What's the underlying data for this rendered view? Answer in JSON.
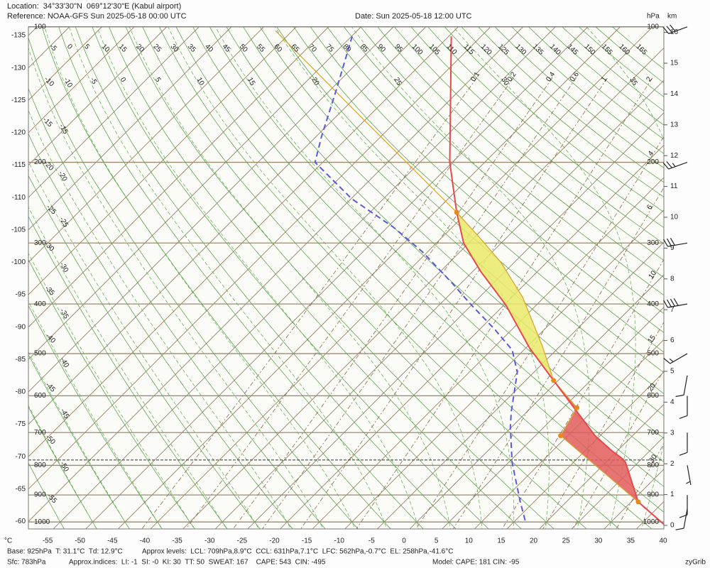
{
  "header": {
    "location": "Location:  34°33'30\"N  069°12'30\"E (Kabul airport)",
    "reference": "Reference: NOAA-GFS Sun 2025-05-18 00:00 UTC",
    "date": "Date: Sun 2025-05-18 12:00 UTC"
  },
  "chart_data": {
    "type": "skewt",
    "pressure_unit": "hPa",
    "height_unit": "km",
    "temperature_unit": "°C",
    "xticks": [
      -55,
      -50,
      -45,
      -40,
      -35,
      -30,
      -25,
      -20,
      -15,
      -10,
      -5,
      0,
      5,
      10,
      15,
      20,
      25,
      30,
      35,
      40
    ],
    "left_ticks": [
      -135,
      -130,
      -125,
      -120,
      -115,
      -110,
      -105,
      -100,
      -95,
      -90,
      -85,
      -80,
      -75,
      -70,
      -65,
      -60
    ],
    "pressure_ticks": [
      100,
      200,
      300,
      400,
      500,
      600,
      700,
      800,
      900,
      1000
    ],
    "km_ticks": [
      0,
      1,
      2,
      3,
      4,
      5,
      6,
      7,
      8,
      9,
      10,
      11,
      12,
      13,
      14,
      15,
      16
    ],
    "dry_adiabats": [
      -55,
      -50,
      -45,
      -40,
      -35,
      -30,
      -25,
      -20,
      -15,
      -10,
      -5,
      0,
      5,
      10,
      15,
      20,
      25,
      30,
      35,
      40,
      45,
      50,
      55,
      60,
      65,
      70,
      75,
      80,
      85,
      90,
      95,
      100,
      105,
      110,
      115,
      120,
      125,
      130,
      135,
      140,
      145,
      150,
      155,
      160,
      165
    ],
    "moist_adiabats": [
      -50,
      -45,
      -40,
      -35,
      -30,
      -25,
      -20,
      -15,
      -10,
      -5,
      0,
      5,
      10,
      15,
      20,
      25,
      30,
      35
    ],
    "mixing_ratios": [
      0.1,
      0.2,
      0.4,
      0.6,
      1,
      2,
      4,
      6,
      10,
      15,
      20,
      30
    ],
    "surface_pressure": 783,
    "temperature": {
      "color": "#e8474c",
      "p": [
        1010,
        925,
        790,
        779,
        753,
        709,
        562,
        487,
        402,
        343,
        300,
        258,
        200,
        105
      ],
      "t": [
        38.6,
        31.1,
        23.0,
        22.0,
        19.0,
        14.2,
        -0.7,
        -9.5,
        -19.7,
        -28.9,
        -35.8,
        -41.6,
        -50.4,
        -69.6
      ]
    },
    "dewpoint": {
      "color": "#5a5ade",
      "p": [
        994,
        925,
        790,
        684,
        642,
        542,
        492,
        448,
        399,
        363,
        313,
        278,
        241,
        200,
        175,
        138,
        105
      ],
      "t": [
        16.5,
        12.9,
        5.5,
        -0.2,
        -2.4,
        -7.6,
        -11.8,
        -17.8,
        -25.5,
        -31.4,
        -40.8,
        -49.0,
        -59.9,
        -71.2,
        -74.2,
        -79.1,
        -84.9
      ]
    },
    "parcel": {
      "color": "#d9a22a",
      "p": [
        925,
        709,
        631,
        562,
        484,
        388,
        329,
        292,
        258,
        162,
        102
      ],
      "t": [
        31.1,
        8.9,
        7.1,
        -0.7,
        -7.7,
        -18.3,
        -27.1,
        -34.2,
        -41.6,
        -69.8,
        -97.6
      ]
    },
    "cape_color": "#e9e96a",
    "cin_color": "#e05c5c",
    "markers": {
      "color": "#e68a1e",
      "p": [
        925,
        709,
        631,
        562,
        258
      ],
      "t": [
        31.1,
        8.9,
        7.1,
        -0.7,
        -41.6
      ]
    },
    "winds": {
      "p": [
        100,
        200,
        300,
        400,
        500,
        550,
        600,
        700,
        800,
        900,
        950
      ],
      "speed": [
        30,
        25,
        30,
        40,
        15,
        10,
        10,
        10,
        5,
        10,
        10
      ],
      "direction": [
        250,
        250,
        260,
        260,
        240,
        190,
        180,
        180,
        170,
        180,
        190
      ]
    }
  },
  "footer": {
    "base": "Base: 925hPa  T: 31.1°C  Td: 12.9°C",
    "levels": "Approx levels:  LCL: 709hPa,8.9°C  CCL: 631hPa,7.1°C  LFC: 562hPa,-0.7°C  EL: 258hPa,-41.6°C",
    "sfc": "Sfc: 783hPa",
    "indices": "Approx.indices:  LI: -1  SI: -0  KI: 30  TT: 50  SWEAT: 167    CAPE: 543  CIN: -495",
    "model": "Model: CAPE: 181 CIN: -95",
    "brand": "zyGrib"
  }
}
